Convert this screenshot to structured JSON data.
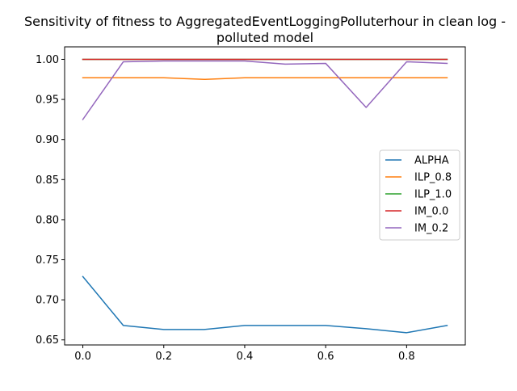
{
  "chart_data": {
    "type": "line",
    "title_line1": "Sensitivity of fitness to AggregatedEventLoggingPolluterhour in clean log -",
    "title_line2": "polluted model",
    "xlabel": "",
    "ylabel": "",
    "x": [
      0.0,
      0.1,
      0.2,
      0.3,
      0.4,
      0.5,
      0.6,
      0.7,
      0.8,
      0.9
    ],
    "xlim": [
      -0.045,
      0.945
    ],
    "ylim": [
      0.6437,
      1.0156
    ],
    "xticks": [
      "0.0",
      "0.2",
      "0.4",
      "0.6",
      "0.8"
    ],
    "yticks": [
      "0.65",
      "0.70",
      "0.75",
      "0.80",
      "0.85",
      "0.90",
      "0.95",
      "1.00"
    ],
    "grid": false,
    "legend_position": "center-right",
    "series": [
      {
        "name": "ALPHA",
        "color": "#1f77b4",
        "values": [
          0.729,
          0.668,
          0.663,
          0.663,
          0.668,
          0.668,
          0.668,
          0.664,
          0.659,
          0.668
        ]
      },
      {
        "name": "ILP_0.8",
        "color": "#ff7f0e",
        "values": [
          0.977,
          0.977,
          0.977,
          0.975,
          0.977,
          0.977,
          0.977,
          0.977,
          0.977,
          0.977
        ]
      },
      {
        "name": "ILP_1.0",
        "color": "#2ca02c",
        "values": [
          1.0,
          1.0,
          1.0,
          1.0,
          1.0,
          1.0,
          1.0,
          1.0,
          1.0,
          1.0
        ]
      },
      {
        "name": "IM_0.0",
        "color": "#d62728",
        "values": [
          1.0,
          1.0,
          1.0,
          1.0,
          1.0,
          1.0,
          1.0,
          1.0,
          1.0,
          1.0
        ]
      },
      {
        "name": "IM_0.2",
        "color": "#9467bd",
        "values": [
          0.925,
          0.997,
          0.998,
          0.998,
          0.998,
          0.994,
          0.995,
          0.94,
          0.997,
          0.995
        ]
      }
    ]
  }
}
